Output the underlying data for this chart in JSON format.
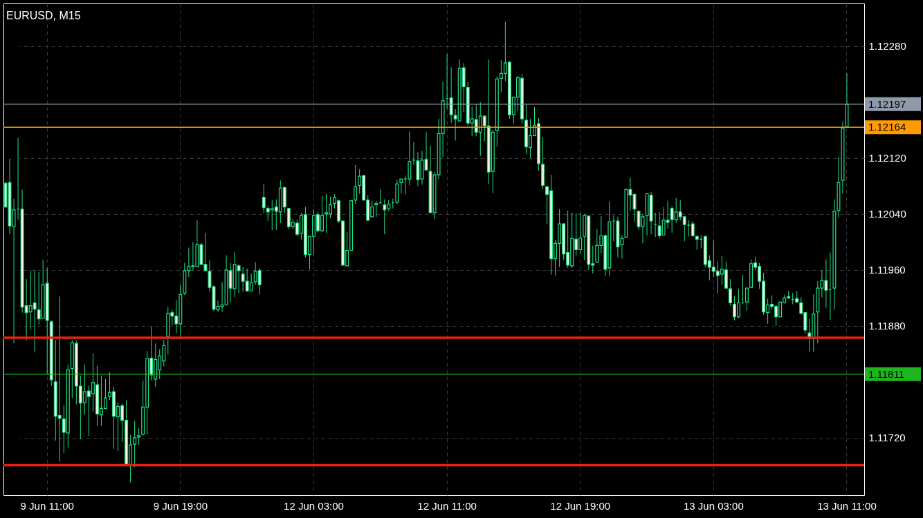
{
  "chart_data": {
    "type": "candlestick",
    "title": "EURUSD, M15",
    "color": "#1ee38c",
    "grid": true,
    "categories": [
      null,
      null,
      null,
      null,
      null,
      null,
      null,
      null,
      null,
      null,
      "9 Jun 11:00",
      null,
      null,
      null,
      null,
      null,
      null,
      null,
      null,
      null,
      null,
      null,
      null,
      null,
      null,
      null,
      null,
      null,
      null,
      null,
      null,
      null,
      null,
      null,
      null,
      null,
      null,
      null,
      null,
      null,
      null,
      null,
      "9 Jun 19:00",
      null,
      null,
      null,
      null,
      null,
      null,
      null,
      null,
      null,
      null,
      null,
      null,
      null,
      null,
      null,
      null,
      null,
      null,
      null,
      null,
      null,
      null,
      null,
      null,
      null,
      null,
      null,
      null,
      null,
      null,
      null,
      "12 Jun 03:00",
      null,
      null,
      null,
      null,
      null,
      null,
      null,
      null,
      null,
      null,
      null,
      null,
      null,
      null,
      null,
      null,
      null,
      null,
      null,
      null,
      null,
      null,
      null,
      null,
      null,
      null,
      null,
      null,
      null,
      null,
      null,
      "12 Jun 11:00",
      null,
      null,
      null,
      null,
      null,
      null,
      null,
      null,
      null,
      null,
      null,
      null,
      null,
      null,
      null,
      null,
      null,
      null,
      null,
      null,
      null,
      null,
      null,
      null,
      null,
      null,
      null,
      null,
      null,
      null,
      null,
      "12 Jun 19:00",
      null,
      null,
      null,
      null,
      null,
      null,
      null,
      null,
      null,
      null,
      null,
      null,
      null,
      null,
      null,
      null,
      null,
      null,
      null,
      null,
      null,
      null,
      null,
      null,
      null,
      null,
      null,
      null,
      null,
      null,
      null,
      "13 Jun 03:00",
      null,
      null,
      null,
      null,
      null,
      null,
      null,
      null,
      null,
      null,
      null,
      null,
      null,
      null,
      null,
      null,
      null,
      null,
      null,
      null,
      null,
      null,
      null,
      null,
      null,
      null,
      null,
      null,
      null,
      null,
      null,
      "13 Jun 11:00"
    ],
    "ohlc": [
      [
        1.12084,
        1.12086,
        1.12049,
        1.1205
      ],
      [
        1.12085,
        1.12119,
        1.12011,
        1.12023
      ],
      [
        1.12022,
        1.12062,
        1.11855,
        1.12046
      ],
      [
        1.12047,
        1.12149,
        1.12032,
        1.12047
      ],
      [
        1.12047,
        1.12075,
        1.11899,
        1.11907
      ],
      [
        1.11909,
        1.11947,
        1.11859,
        1.11899
      ],
      [
        1.119,
        1.11959,
        1.11875,
        1.11909
      ],
      [
        1.11913,
        1.1196,
        1.11842,
        1.11904
      ],
      [
        1.11903,
        1.11957,
        1.11882,
        1.1189
      ],
      [
        1.11891,
        1.11974,
        1.1189,
        1.11939
      ],
      [
        1.11941,
        1.11963,
        1.11811,
        1.11888
      ],
      [
        1.11886,
        1.11888,
        1.11794,
        1.11803
      ],
      [
        1.118,
        1.1186,
        1.11716,
        1.11751
      ],
      [
        1.11752,
        1.11922,
        1.11686,
        1.11748
      ],
      [
        1.11747,
        1.11767,
        1.11698,
        1.11728
      ],
      [
        1.11727,
        1.11825,
        1.11706,
        1.11817
      ],
      [
        1.11819,
        1.1186,
        1.11777,
        1.11856
      ],
      [
        1.11855,
        1.11859,
        1.11768,
        1.11794
      ],
      [
        1.11794,
        1.11809,
        1.11718,
        1.1177
      ],
      [
        1.1177,
        1.11825,
        1.11753,
        1.11786
      ],
      [
        1.11787,
        1.11795,
        1.11723,
        1.11779
      ],
      [
        1.11783,
        1.11841,
        1.11757,
        1.11799
      ],
      [
        1.11796,
        1.11823,
        1.11737,
        1.11754
      ],
      [
        1.11753,
        1.11809,
        1.11737,
        1.11762
      ],
      [
        1.11762,
        1.11804,
        1.11761,
        1.11777
      ],
      [
        1.11779,
        1.11814,
        1.11774,
        1.11785
      ],
      [
        1.11786,
        1.11793,
        1.11704,
        1.11751
      ],
      [
        1.1175,
        1.11771,
        1.11701,
        1.11765
      ],
      [
        1.11766,
        1.11769,
        1.11714,
        1.11745
      ],
      [
        1.11745,
        1.11774,
        1.11681,
        1.11682
      ],
      [
        1.11681,
        1.11724,
        1.11656,
        1.1171
      ],
      [
        1.11711,
        1.11744,
        1.11678,
        1.1172
      ],
      [
        1.11721,
        1.11734,
        1.1171,
        1.11723
      ],
      [
        1.11725,
        1.11802,
        1.11723,
        1.11764
      ],
      [
        1.11764,
        1.11844,
        1.11725,
        1.11833
      ],
      [
        1.11834,
        1.11879,
        1.11802,
        1.1181
      ],
      [
        1.11804,
        1.11855,
        1.11793,
        1.11832
      ],
      [
        1.11817,
        1.11847,
        1.11804,
        1.11837
      ],
      [
        1.1183,
        1.1186,
        1.11822,
        1.11852
      ],
      [
        1.11865,
        1.11907,
        1.11839,
        1.11898
      ],
      [
        1.11899,
        1.11903,
        1.11881,
        1.11894
      ],
      [
        1.11894,
        1.11917,
        1.1187,
        1.11883
      ],
      [
        1.11883,
        1.11939,
        1.11865,
        1.11925
      ],
      [
        1.11927,
        1.1197,
        1.11924,
        1.11959
      ],
      [
        1.11959,
        1.11992,
        1.1195,
        1.11965
      ],
      [
        1.11966,
        1.12,
        1.11959,
        1.11965
      ],
      [
        1.11965,
        1.12031,
        1.11964,
        1.11996
      ],
      [
        1.11996,
        1.11999,
        1.11967,
        1.11968
      ],
      [
        1.11968,
        1.12013,
        1.11958,
        1.11959
      ],
      [
        1.11958,
        1.11974,
        1.11929,
        1.11935
      ],
      [
        1.11936,
        1.11938,
        1.11901,
        1.11904
      ],
      [
        1.11903,
        1.11916,
        1.119,
        1.11908
      ],
      [
        1.11908,
        1.11943,
        1.119,
        1.1191
      ],
      [
        1.1191,
        1.11981,
        1.11909,
        1.1196
      ],
      [
        1.11959,
        1.1197,
        1.11914,
        1.11934
      ],
      [
        1.11933,
        1.11986,
        1.11921,
        1.11968
      ],
      [
        1.11966,
        1.11968,
        1.11927,
        1.11959
      ],
      [
        1.11954,
        1.11964,
        1.11929,
        1.11944
      ],
      [
        1.11944,
        1.11962,
        1.11929,
        1.1193
      ],
      [
        1.1193,
        1.11955,
        1.11929,
        1.11942
      ],
      [
        1.11943,
        1.11971,
        1.11939,
        1.11958
      ],
      [
        1.11959,
        1.11963,
        1.11925,
        1.11939
      ],
      [
        1.12064,
        1.12083,
        1.12041,
        1.12049
      ],
      [
        1.12048,
        1.12052,
        1.1203,
        1.12043
      ],
      [
        1.12046,
        1.1206,
        1.12017,
        1.12048
      ],
      [
        1.1205,
        1.12061,
        1.12017,
        1.12044
      ],
      [
        1.12043,
        1.12088,
        1.12027,
        1.12077
      ],
      [
        1.12078,
        1.12079,
        1.12042,
        1.1205
      ],
      [
        1.12048,
        1.12049,
        1.12018,
        1.12022
      ],
      [
        1.12022,
        1.12033,
        1.12018,
        1.12028
      ],
      [
        1.12027,
        1.12032,
        1.12008,
        1.12011
      ],
      [
        1.12012,
        1.12042,
        1.12003,
        1.12038
      ],
      [
        1.12039,
        1.1205,
        1.11978,
        1.11982
      ],
      [
        1.11982,
        1.12009,
        1.11961,
        1.12008
      ],
      [
        1.12008,
        1.12047,
        1.11982,
        1.12038
      ],
      [
        1.12039,
        1.12043,
        1.12014,
        1.12016
      ],
      [
        1.12016,
        1.12066,
        1.12014,
        1.12038
      ],
      [
        1.1204,
        1.12069,
        1.12013,
        1.12042
      ],
      [
        1.1204,
        1.12065,
        1.12034,
        1.12053
      ],
      [
        1.12055,
        1.12068,
        1.12048,
        1.12064
      ],
      [
        1.12059,
        1.12061,
        1.12027,
        1.1203
      ],
      [
        1.1203,
        1.12031,
        1.11966,
        1.11967
      ],
      [
        1.11966,
        1.12014,
        1.11966,
        1.11988
      ],
      [
        1.11988,
        1.1206,
        1.11988,
        1.12059
      ],
      [
        1.1206,
        1.1211,
        1.12054,
        1.12079
      ],
      [
        1.12081,
        1.12104,
        1.12069,
        1.12094
      ],
      [
        1.12095,
        1.12096,
        1.12059,
        1.1206
      ],
      [
        1.1206,
        1.12067,
        1.1203,
        1.12031
      ],
      [
        1.12036,
        1.12059,
        1.12035,
        1.1205
      ],
      [
        1.12053,
        1.12059,
        1.12036,
        1.12055
      ],
      [
        1.12056,
        1.12075,
        1.12055,
        1.12056
      ],
      [
        1.12053,
        1.12061,
        1.12011,
        1.12046
      ],
      [
        1.12048,
        1.1206,
        1.12044,
        1.12054
      ],
      [
        1.12056,
        1.12062,
        1.12048,
        1.12056
      ],
      [
        1.12057,
        1.12089,
        1.12054,
        1.12083
      ],
      [
        1.12085,
        1.1209,
        1.1207,
        1.1209
      ],
      [
        1.1209,
        1.12095,
        1.12068,
        1.1209
      ],
      [
        1.1209,
        1.12158,
        1.12081,
        1.12115
      ],
      [
        1.12117,
        1.12143,
        1.1211,
        1.12117
      ],
      [
        1.12116,
        1.12128,
        1.1208,
        1.12089
      ],
      [
        1.1209,
        1.1213,
        1.12082,
        1.12117
      ],
      [
        1.12118,
        1.12157,
        1.12102,
        1.12103
      ],
      [
        1.12101,
        1.12138,
        1.12041,
        1.12042
      ],
      [
        1.12042,
        1.121,
        1.12033,
        1.12096
      ],
      [
        1.12096,
        1.12176,
        1.1209,
        1.12155
      ],
      [
        1.12155,
        1.12229,
        1.12121,
        1.12202
      ],
      [
        1.12205,
        1.12269,
        1.1219,
        1.12205
      ],
      [
        1.12206,
        1.1225,
        1.1217,
        1.12182
      ],
      [
        1.12181,
        1.1219,
        1.12145,
        1.12176
      ],
      [
        1.12173,
        1.12261,
        1.12172,
        1.12248
      ],
      [
        1.12249,
        1.12256,
        1.12186,
        1.12222
      ],
      [
        1.12221,
        1.12229,
        1.12166,
        1.1217
      ],
      [
        1.1217,
        1.12194,
        1.12151,
        1.12176
      ],
      [
        1.12175,
        1.12197,
        1.12151,
        1.12157
      ],
      [
        1.12157,
        1.122,
        1.12123,
        1.1218
      ],
      [
        1.1218,
        1.12181,
        1.12144,
        1.12166
      ],
      [
        1.12166,
        1.12261,
        1.12083,
        1.121
      ],
      [
        1.12101,
        1.12161,
        1.1207,
        1.12157
      ],
      [
        1.12159,
        1.12237,
        1.12136,
        1.12233
      ],
      [
        1.12234,
        1.1226,
        1.12214,
        1.12241
      ],
      [
        1.12241,
        1.12315,
        1.1223,
        1.12256
      ],
      [
        1.12257,
        1.12259,
        1.12176,
        1.12182
      ],
      [
        1.12182,
        1.12208,
        1.12169,
        1.12207
      ],
      [
        1.12207,
        1.12237,
        1.12187,
        1.12235
      ],
      [
        1.12234,
        1.1224,
        1.12169,
        1.12176
      ],
      [
        1.12174,
        1.12196,
        1.12126,
        1.12136
      ],
      [
        1.12135,
        1.12176,
        1.1212,
        1.12152
      ],
      [
        1.12152,
        1.12193,
        1.12151,
        1.12167
      ],
      [
        1.12169,
        1.12177,
        1.12102,
        1.12112
      ],
      [
        1.12111,
        1.1215,
        1.12076,
        1.12081
      ],
      [
        1.12079,
        1.1208,
        1.12025,
        1.12068
      ],
      [
        1.12073,
        1.12096,
        1.11953,
        1.11976
      ],
      [
        1.11976,
        1.12003,
        1.11952,
        1.11998
      ],
      [
        1.11998,
        1.12047,
        1.11964,
        1.12026
      ],
      [
        1.12026,
        1.12027,
        1.11974,
        1.11983
      ],
      [
        1.11985,
        1.12045,
        1.11963,
        1.11967
      ],
      [
        1.11966,
        1.12042,
        1.11963,
        1.12005
      ],
      [
        1.12004,
        1.12041,
        1.1198,
        1.11989
      ],
      [
        1.11989,
        1.12041,
        1.11983,
        1.12006
      ],
      [
        1.12008,
        1.1204,
        1.11974,
        1.12038
      ],
      [
        1.12037,
        1.12038,
        1.1196,
        1.11968
      ],
      [
        1.11969,
        1.11995,
        1.11955,
        1.11967
      ],
      [
        1.11971,
        1.12019,
        1.1197,
        1.11995
      ],
      [
        1.11995,
        1.12037,
        1.11984,
        1.12009
      ],
      [
        1.12009,
        1.12011,
        1.11952,
        1.11961
      ],
      [
        1.11963,
        1.12058,
        1.11951,
        1.12029
      ],
      [
        1.1203,
        1.12038,
        1.12001,
        1.1203
      ],
      [
        1.1203,
        1.12036,
        1.11978,
        1.11993
      ],
      [
        1.11996,
        1.12009,
        1.11976,
        1.12005
      ],
      [
        1.12007,
        1.12076,
        1.12007,
        1.12075
      ],
      [
        1.12075,
        1.12092,
        1.12045,
        1.12067
      ],
      [
        1.12068,
        1.1207,
        1.12029,
        1.12047
      ],
      [
        1.12044,
        1.12045,
        1.12017,
        1.12022
      ],
      [
        1.12022,
        1.1204,
        1.11998,
        1.12036
      ],
      [
        1.12038,
        1.1207,
        1.12009,
        1.12069
      ],
      [
        1.12067,
        1.12071,
        1.12011,
        1.1203
      ],
      [
        1.12025,
        1.12042,
        1.12007,
        1.12025
      ],
      [
        1.12023,
        1.12043,
        1.12005,
        1.12009
      ],
      [
        1.1201,
        1.1205,
        1.1201,
        1.12031
      ],
      [
        1.12031,
        1.12059,
        1.12019,
        1.12028
      ],
      [
        1.12048,
        1.12051,
        1.12013,
        1.12032
      ],
      [
        1.12032,
        1.12063,
        1.12027,
        1.12043
      ],
      [
        1.12043,
        1.1206,
        1.12031,
        1.12036
      ],
      [
        1.12036,
        1.12037,
        1.12001,
        1.12025
      ],
      [
        1.12024,
        1.12031,
        1.12008,
        1.12024
      ],
      [
        1.12026,
        1.1203,
        1.12007,
        1.12009
      ],
      [
        1.12008,
        1.1201,
        1.11989,
        1.12004
      ],
      [
        1.12004,
        1.1201,
        1.11991,
        1.12004
      ],
      [
        1.12008,
        1.12009,
        1.11964,
        1.11968
      ],
      [
        1.11973,
        1.11981,
        1.11945,
        1.11964
      ],
      [
        1.11964,
        1.12002,
        1.1195,
        1.11958
      ],
      [
        1.11958,
        1.11972,
        1.11926,
        1.11952
      ],
      [
        1.11954,
        1.1198,
        1.11939,
        1.11961
      ],
      [
        1.1196,
        1.11972,
        1.11933,
        1.11934
      ],
      [
        1.11933,
        1.11947,
        1.11909,
        1.11913
      ],
      [
        1.11911,
        1.11923,
        1.11888,
        1.11893
      ],
      [
        1.11893,
        1.11933,
        1.11891,
        1.11913
      ],
      [
        1.11913,
        1.11953,
        1.11911,
        1.11913
      ],
      [
        1.11914,
        1.11934,
        1.11902,
        1.11934
      ],
      [
        1.11935,
        1.11975,
        1.11934,
        1.11969
      ],
      [
        1.1197,
        1.11979,
        1.1196,
        1.11964
      ],
      [
        1.11965,
        1.1197,
        1.11933,
        1.11944
      ],
      [
        1.11944,
        1.11956,
        1.11896,
        1.119
      ],
      [
        1.11899,
        1.11919,
        1.11883,
        1.1191
      ],
      [
        1.11911,
        1.11924,
        1.11903,
        1.11908
      ],
      [
        1.11908,
        1.1191,
        1.1188,
        1.11893
      ],
      [
        1.11893,
        1.11915,
        1.11892,
        1.11914
      ],
      [
        1.11913,
        1.11924,
        1.11912,
        1.1192
      ],
      [
        1.11922,
        1.1193,
        1.11919,
        1.1192
      ],
      [
        1.11918,
        1.11927,
        1.11911,
        1.11918
      ],
      [
        1.11919,
        1.1193,
        1.11913,
        1.11914
      ],
      [
        1.11913,
        1.11921,
        1.11896,
        1.11898
      ],
      [
        1.11899,
        1.119,
        1.11869,
        1.11874
      ],
      [
        1.1187,
        1.1189,
        1.11843,
        1.11862
      ],
      [
        1.11862,
        1.11925,
        1.11843,
        1.11897
      ],
      [
        1.119,
        1.11944,
        1.11855,
        1.11934
      ],
      [
        1.11934,
        1.1196,
        1.11921,
        1.11945
      ],
      [
        1.11945,
        1.11975,
        1.11906,
        1.11931
      ],
      [
        1.11932,
        1.11985,
        1.11888,
        1.11932
      ],
      [
        1.11934,
        1.12061,
        1.11903,
        1.12044
      ],
      [
        1.12045,
        1.12122,
        1.12035,
        1.12085
      ],
      [
        1.12088,
        1.12172,
        1.12069,
        1.12163
      ],
      [
        1.12165,
        1.12241,
        1.12165,
        1.12197
      ]
    ],
    "ylim": [
      1.11638,
      1.12341
    ],
    "yticks": [
      {
        "value": 1.1172,
        "label": "1.11720"
      },
      {
        "value": 1.1188,
        "label": "1.11880"
      },
      {
        "value": 1.1196,
        "label": "1.11960"
      },
      {
        "value": 1.1204,
        "label": "1.12040"
      },
      {
        "value": 1.1212,
        "label": "1.12120"
      },
      {
        "value": 1.1228,
        "label": "1.12280"
      }
    ],
    "ref_lines": [
      {
        "axis": "y",
        "value": 1.12197,
        "label": "1.12197",
        "color": "#8c9aaa"
      },
      {
        "axis": "y",
        "value": 1.12164,
        "label": "1.12164",
        "color": "#ff9a00"
      },
      {
        "axis": "y",
        "value": 1.11811,
        "label": "1.11811",
        "color": "#1fb51f"
      },
      {
        "axis": "y",
        "value": 1.11863,
        "label": null,
        "color": "#e8200f"
      },
      {
        "axis": "y",
        "value": 1.11681,
        "label": null,
        "color": "#e8200f"
      }
    ]
  }
}
